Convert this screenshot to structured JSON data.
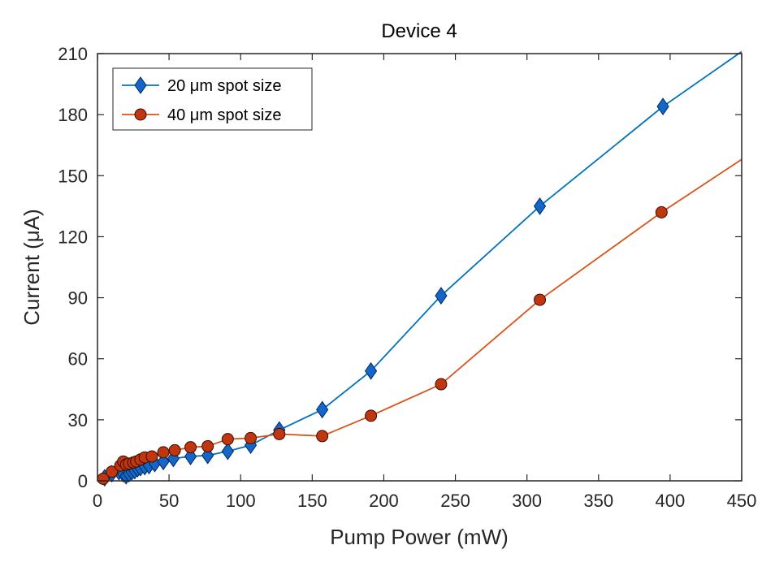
{
  "chart_data": {
    "type": "line",
    "title": "Device 4",
    "xlabel": "Pump Power (mW)",
    "ylabel": "Current (μA)",
    "xlim": [
      0,
      450
    ],
    "ylim": [
      0,
      210
    ],
    "xticks": [
      0,
      50,
      100,
      150,
      200,
      250,
      300,
      350,
      400,
      450
    ],
    "yticks": [
      0,
      30,
      60,
      90,
      120,
      150,
      180,
      210
    ],
    "grid": false,
    "legend_position": "top-left",
    "series": [
      {
        "name": "20 μm spot size",
        "marker": "diamond",
        "color": "#0072BD",
        "marker_fill": "#1466C8",
        "x": [
          5,
          10,
          15,
          18,
          20,
          22,
          24,
          26,
          28,
          30,
          33,
          36,
          40,
          46,
          53,
          65,
          77,
          91,
          107,
          127,
          157,
          191,
          240,
          309,
          395,
          450
        ],
        "y": [
          1.5,
          3.5,
          4.5,
          3.5,
          2.5,
          3.5,
          4.5,
          5,
          6,
          6.5,
          7,
          7.5,
          8.5,
          9.5,
          11,
          12,
          12.5,
          14.5,
          17.5,
          25,
          35,
          54,
          91,
          135,
          184,
          211
        ]
      },
      {
        "name": "40 μm spot size",
        "marker": "circle",
        "color": "#D95319",
        "marker_fill": "#C0360E",
        "x": [
          4,
          10,
          16,
          18,
          20,
          22,
          25,
          27,
          30,
          33,
          38,
          46,
          54,
          65,
          77,
          91,
          107,
          127,
          157,
          191,
          240,
          309,
          394,
          450
        ],
        "y": [
          1,
          4.5,
          7.5,
          9.5,
          8,
          8.5,
          9,
          9.5,
          10.5,
          11.5,
          12,
          14,
          15,
          16.5,
          17,
          20.5,
          21,
          23,
          22,
          32,
          47.5,
          89,
          132,
          158
        ]
      }
    ]
  }
}
